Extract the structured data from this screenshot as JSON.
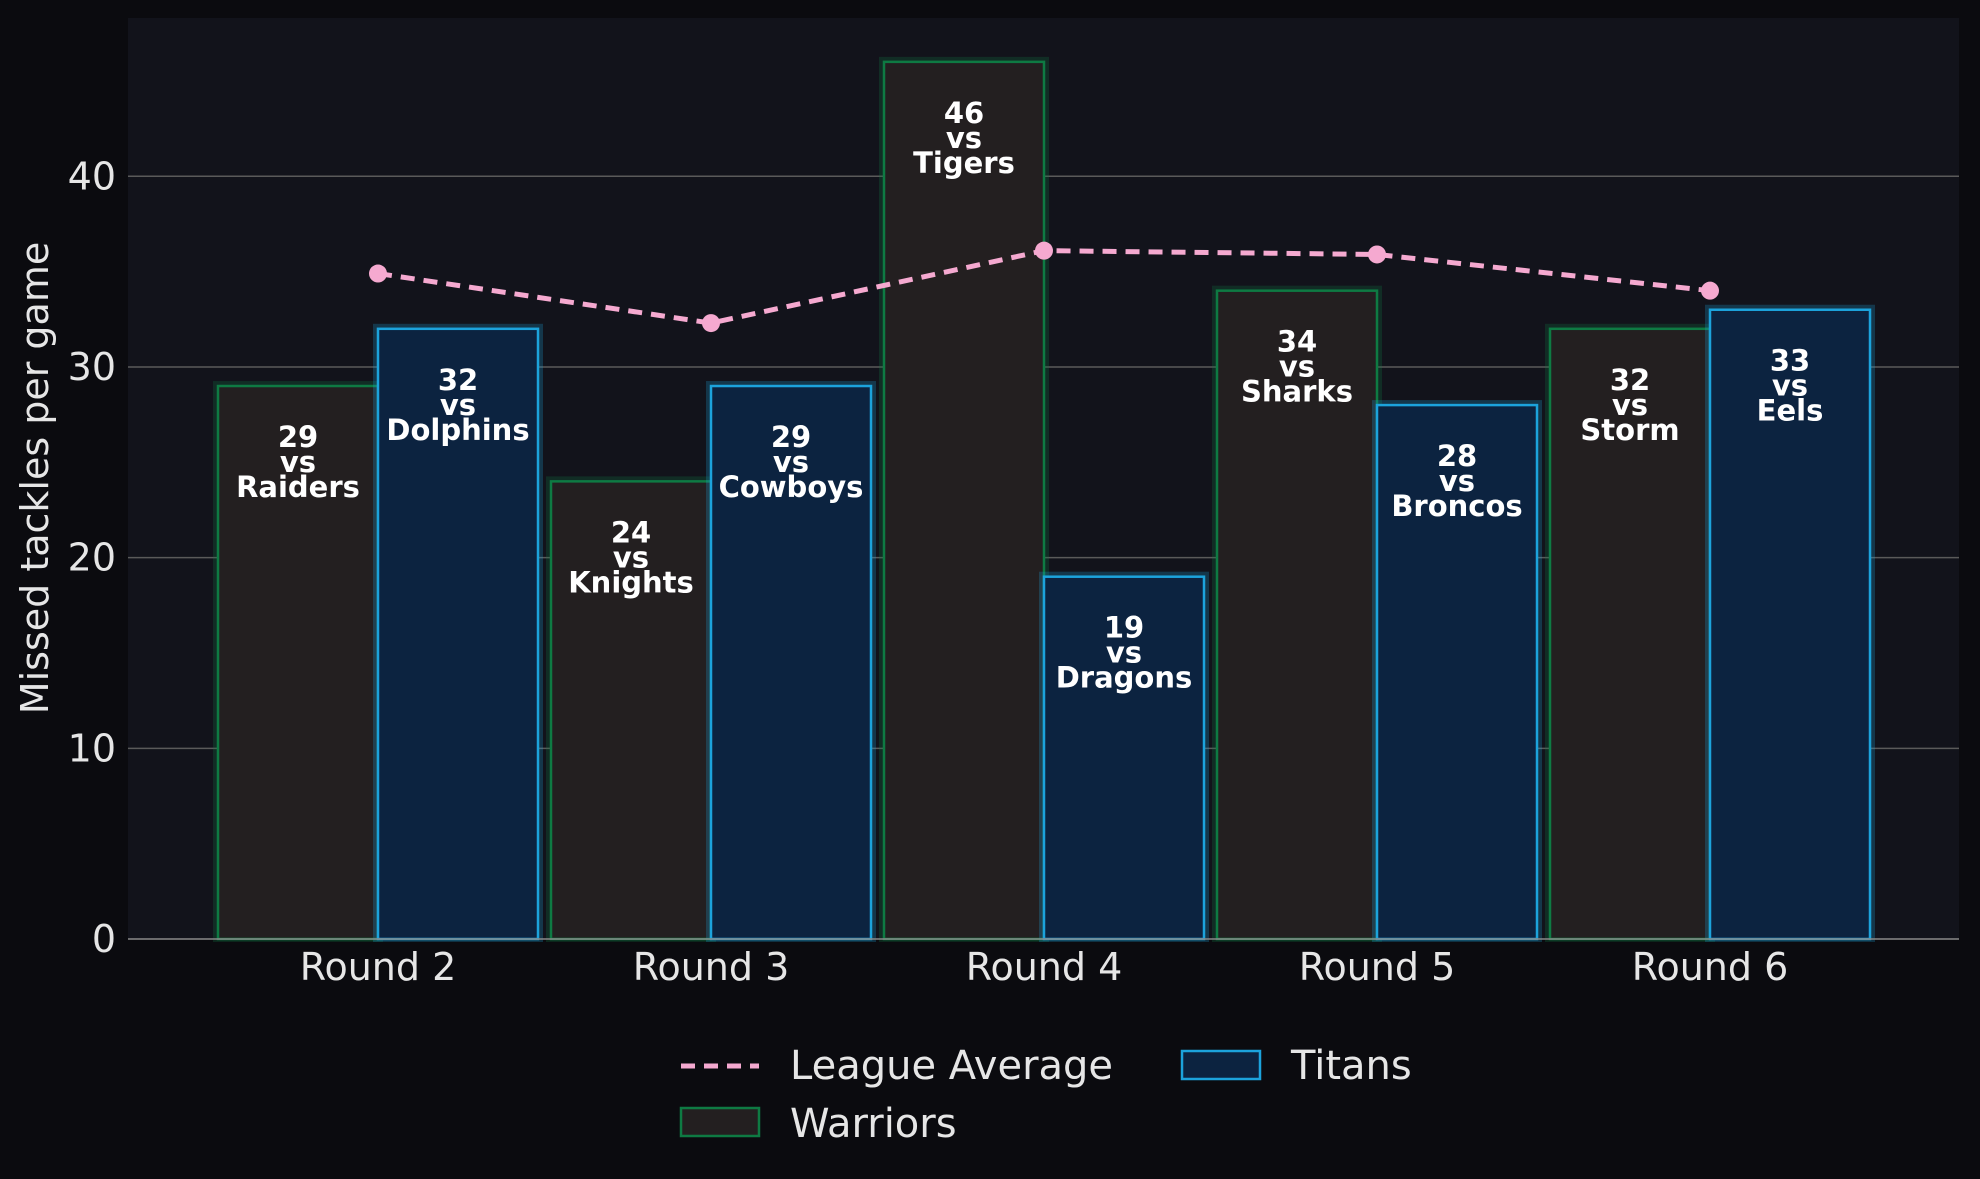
{
  "chart_data": {
    "type": "bar",
    "categories": [
      "Round 2",
      "Round 3",
      "Round 4",
      "Round 5",
      "Round 6"
    ],
    "series": [
      {
        "name": "Warriors",
        "values": [
          29,
          24,
          46,
          34,
          32
        ],
        "opponents": [
          "Raiders",
          "Knights",
          "Tigers",
          "Sharks",
          "Storm"
        ],
        "fill": "#231f20",
        "edge": "#0e7a43"
      },
      {
        "name": "Titans",
        "values": [
          32,
          29,
          19,
          28,
          33
        ],
        "opponents": [
          "Dolphins",
          "Cowboys",
          "Dragons",
          "Broncos",
          "Eels"
        ],
        "fill": "#0c2340",
        "edge": "#1ca3dc"
      }
    ],
    "line_series": {
      "name": "League Average",
      "type": "line",
      "style": "dashed",
      "color": "#f5a9d0",
      "values": [
        34.9,
        32.3,
        36.1,
        35.9,
        34.0
      ]
    },
    "vs_word": "vs",
    "xlabel": "",
    "ylabel": "Missed tackles per game",
    "ylim": [
      0,
      48.3
    ],
    "yticks": [
      0,
      10,
      20,
      30,
      40
    ],
    "grid": "horizontal",
    "legend_position": "bottom-center",
    "colors": {
      "figure_bg": "#0b0b0f",
      "plot_bg": "#12131b",
      "grid": "#5a5a5a",
      "text": "#e6e6e6"
    }
  }
}
